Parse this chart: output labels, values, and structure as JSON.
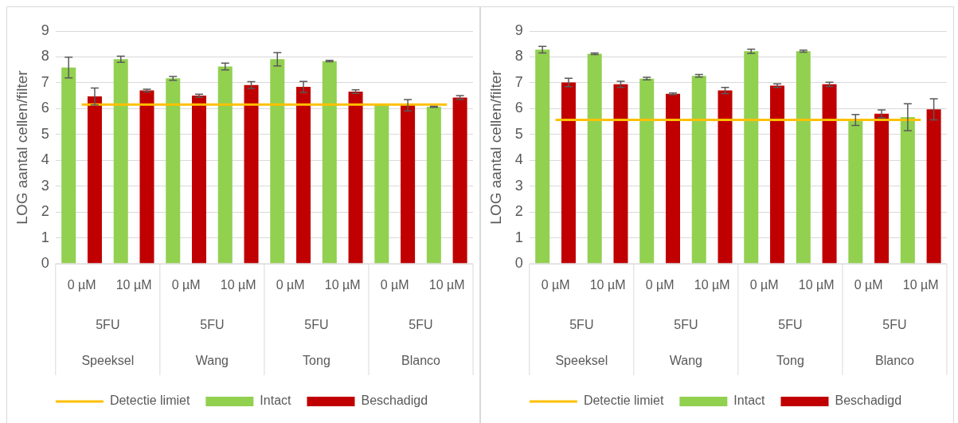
{
  "chart_data": [
    {
      "type": "bar",
      "ylabel": "LOG aantal cellen/filter",
      "categories": [
        "0 µM",
        "10 µM",
        "0 µM",
        "10 µM",
        "0 µM",
        "10 µM",
        "0 µM",
        "10 µM"
      ],
      "annotations": [
        "5FU",
        "5FU",
        "5FU",
        "5FU",
        "Speeksel",
        "Wang",
        "Tong",
        "Blanco"
      ],
      "series": [
        {
          "name": "Intact",
          "color": "#92d050",
          "values": [
            7.59,
            7.91,
            7.17,
            7.63,
            7.91,
            7.84,
            6.15,
            6.07
          ],
          "errors": [
            0.4,
            0.12,
            0.07,
            0.13,
            0.26,
            0.03,
            null,
            0.02
          ]
        },
        {
          "name": "Beschadigd",
          "color": "#c00000",
          "values": [
            6.47,
            6.7,
            6.5,
            6.91,
            6.84,
            6.66,
            6.13,
            6.43
          ],
          "errors": [
            0.33,
            0.05,
            0.06,
            0.13,
            0.21,
            0.07,
            0.22,
            0.07
          ]
        },
        {
          "name": "Detectie limiet",
          "type": "line",
          "color": "#ffc000",
          "values": [
            6.16,
            6.16,
            6.16,
            6.16,
            6.16,
            6.16,
            6.16,
            6.16
          ]
        }
      ],
      "ylim": [
        0,
        9
      ],
      "yticks": [
        0,
        1,
        2,
        3,
        4,
        5,
        6,
        7,
        8,
        9
      ],
      "grid": "y",
      "legend": "bottom",
      "marker": "none"
    },
    {
      "type": "bar",
      "ylabel": "LOG aantal cellen/filter",
      "categories": [
        "0 µM",
        "10 µM",
        "0 µM",
        "10 µM",
        "0 µM",
        "10 µM",
        "0 µM",
        "10 µM"
      ],
      "annotations": [
        "5FU",
        "5FU",
        "5FU",
        "5FU",
        "Speeksel",
        "Wang",
        "Tong",
        "Blanco"
      ],
      "series": [
        {
          "name": "Intact",
          "color": "#92d050",
          "values": [
            8.28,
            8.12,
            7.16,
            7.27,
            8.22,
            8.22,
            5.56,
            5.67
          ],
          "errors": [
            0.13,
            0.03,
            0.05,
            0.05,
            0.08,
            0.04,
            0.21,
            0.52
          ]
        },
        {
          "name": "Beschadigd",
          "color": "#c00000",
          "values": [
            7.01,
            6.94,
            6.57,
            6.7,
            6.89,
            6.94,
            5.8,
            5.97
          ],
          "errors": [
            0.16,
            0.12,
            0.03,
            0.12,
            0.07,
            0.08,
            0.15,
            0.41
          ]
        },
        {
          "name": "Detectie limiet",
          "type": "line",
          "color": "#ffc000",
          "values": [
            5.56,
            5.56,
            5.56,
            5.56,
            5.56,
            5.56,
            5.56,
            5.56
          ]
        }
      ],
      "ylim": [
        0,
        9
      ],
      "yticks": [
        0,
        1,
        2,
        3,
        4,
        5,
        6,
        7,
        8,
        9
      ],
      "grid": "y",
      "legend": "bottom",
      "marker": "none"
    }
  ]
}
